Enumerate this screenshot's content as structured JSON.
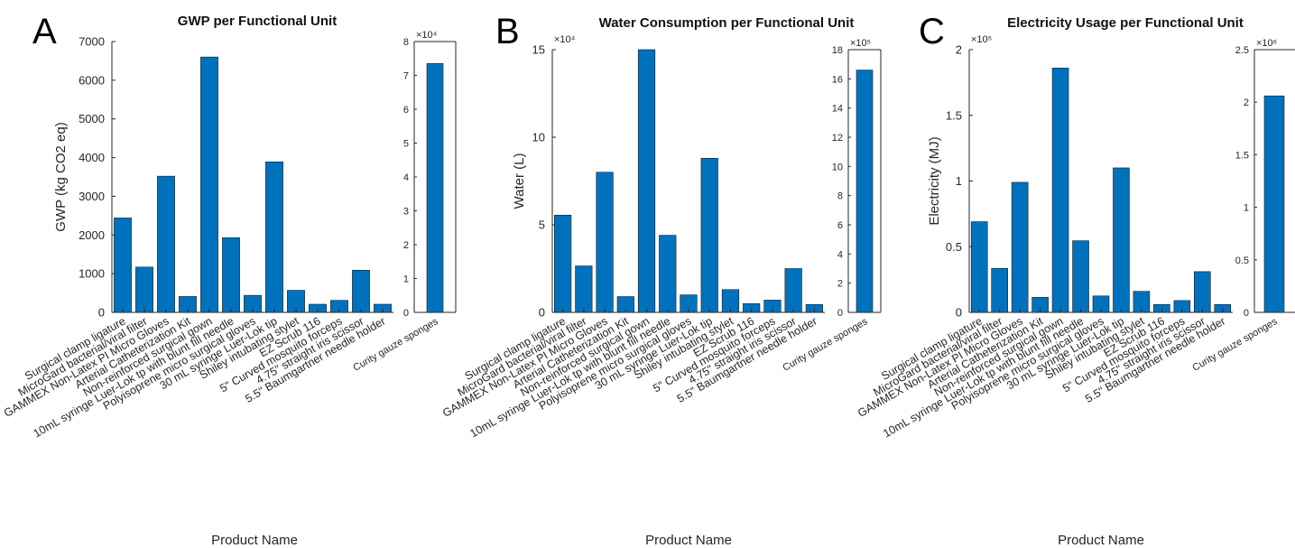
{
  "colors": {
    "bar": "#0072BD",
    "axis": "#262626"
  },
  "chart_data": [
    {
      "type": "bar",
      "panel_letter": "A",
      "title": "GWP per Functional Unit",
      "xlabel": "Product Name",
      "ylabel": "GWP (kg CO2 eq)",
      "categories": [
        "Surgical clamp ligature",
        "MicroGard bacterial/viral filter",
        "GAMMEX Non-Latex PI Micro Gloves",
        "Arterial Catheterization Kit",
        "Non-reinforced surgical gown",
        "10mL syringe Luer-Lok tp with blunt fill needle",
        "Polyisoprene micro surgical gloves",
        "30 mL syringe Luer-Lok tip",
        "Shiley intubating stylet",
        "EZ Scrub 116",
        "5\" Curved mosquito forceps",
        "4.75\" straight iris scissor",
        "5.5\" Baumgartner needle holder"
      ],
      "values": [
        2440,
        1170,
        3520,
        410,
        6600,
        1930,
        440,
        3890,
        570,
        210,
        310,
        1090,
        210
      ],
      "ylim": [
        0,
        7000
      ],
      "yticks": [
        0,
        1000,
        2000,
        3000,
        4000,
        5000,
        6000,
        7000
      ],
      "ytick_labels": [
        "0",
        "1000",
        "2000",
        "3000",
        "4000",
        "5000",
        "6000",
        "7000"
      ],
      "inset": {
        "categories": [
          "Curity gauze sponges"
        ],
        "values": [
          7.35
        ],
        "ylim": [
          0,
          8
        ],
        "yticks": [
          0,
          1,
          2,
          3,
          4,
          5,
          6,
          7,
          8
        ],
        "ytick_labels": [
          "0",
          "1",
          "2",
          "3",
          "4",
          "5",
          "6",
          "7",
          "8"
        ],
        "exponent_label": "×10⁴"
      }
    },
    {
      "type": "bar",
      "panel_letter": "B",
      "title": "Water Consumption per Functional Unit",
      "xlabel": "Product Name",
      "ylabel": "Water (L)",
      "exponent_label": "×10⁴",
      "categories": [
        "Surgical clamp ligature",
        "MicroGard bacterial/viral filter",
        "GAMMEX Non-Latex PI Micro Gloves",
        "Arterial Catheterization Kit",
        "Non-reinforced surgical gown",
        "10mL syringe Luer-Lok tp with blunt fill needle",
        "Polyisoprene micro surgical gloves",
        "30 mL syringe Luer-Lok tip",
        "Shiley intubating stylet",
        "EZ Scrub 116",
        "5\" Curved mosquito forceps",
        "4.75\" straight iris scissor",
        "5.5\" Baumgartner needle holder"
      ],
      "values": [
        5.55,
        2.65,
        8.0,
        0.9,
        15.0,
        4.4,
        1.0,
        8.8,
        1.3,
        0.5,
        0.7,
        2.5,
        0.45
      ],
      "ylim": [
        0,
        15
      ],
      "yticks": [
        0,
        5,
        10,
        15
      ],
      "ytick_labels": [
        "0",
        "5",
        "10",
        "15"
      ],
      "inset": {
        "categories": [
          "Curity gauze sponges"
        ],
        "values": [
          16.6
        ],
        "ylim": [
          0,
          18
        ],
        "yticks": [
          0,
          2,
          4,
          6,
          8,
          10,
          12,
          14,
          16,
          18
        ],
        "ytick_labels": [
          "0",
          "2",
          "4",
          "6",
          "8",
          "10",
          "12",
          "14",
          "16",
          "18"
        ],
        "exponent_label": "×10⁵"
      }
    },
    {
      "type": "bar",
      "panel_letter": "C",
      "title": "Electricity Usage per Functional Unit",
      "xlabel": "Product Name",
      "ylabel": "Electricity (MJ)",
      "exponent_label": "×10⁵",
      "categories": [
        "Surgical clamp ligature",
        "MicroGard bacterial/viral filter",
        "GAMMEX Non-Latex PI Micro Gloves",
        "Arterial Catheterization Kit",
        "Non-reinforced surgical gown",
        "10mL syringe Luer-Lok tp with blunt fill needle",
        "Polyisoprene micro surgical gloves",
        "30 mL syringe Luer-Lok tip",
        "Shiley intubating stylet",
        "EZ Scrub 116",
        "5\" Curved mosquito forceps",
        "4.75\" straight iris scissor",
        "5.5\" Baumgartner needle holder"
      ],
      "values": [
        0.69,
        0.335,
        0.99,
        0.115,
        1.86,
        0.545,
        0.125,
        1.1,
        0.16,
        0.06,
        0.09,
        0.31,
        0.06
      ],
      "ylim": [
        0,
        2
      ],
      "yticks": [
        0,
        0.5,
        1,
        1.5,
        2
      ],
      "ytick_labels": [
        "0",
        "0.5",
        "1",
        "1.5",
        "2"
      ],
      "inset": {
        "categories": [
          "Curity gauze sponges"
        ],
        "values": [
          2.06
        ],
        "ylim": [
          0,
          2.5
        ],
        "yticks": [
          0,
          0.5,
          1,
          1.5,
          2,
          2.5
        ],
        "ytick_labels": [
          "0",
          "0.5",
          "1",
          "1.5",
          "2",
          "2.5"
        ],
        "exponent_label": "×10⁶"
      }
    }
  ]
}
